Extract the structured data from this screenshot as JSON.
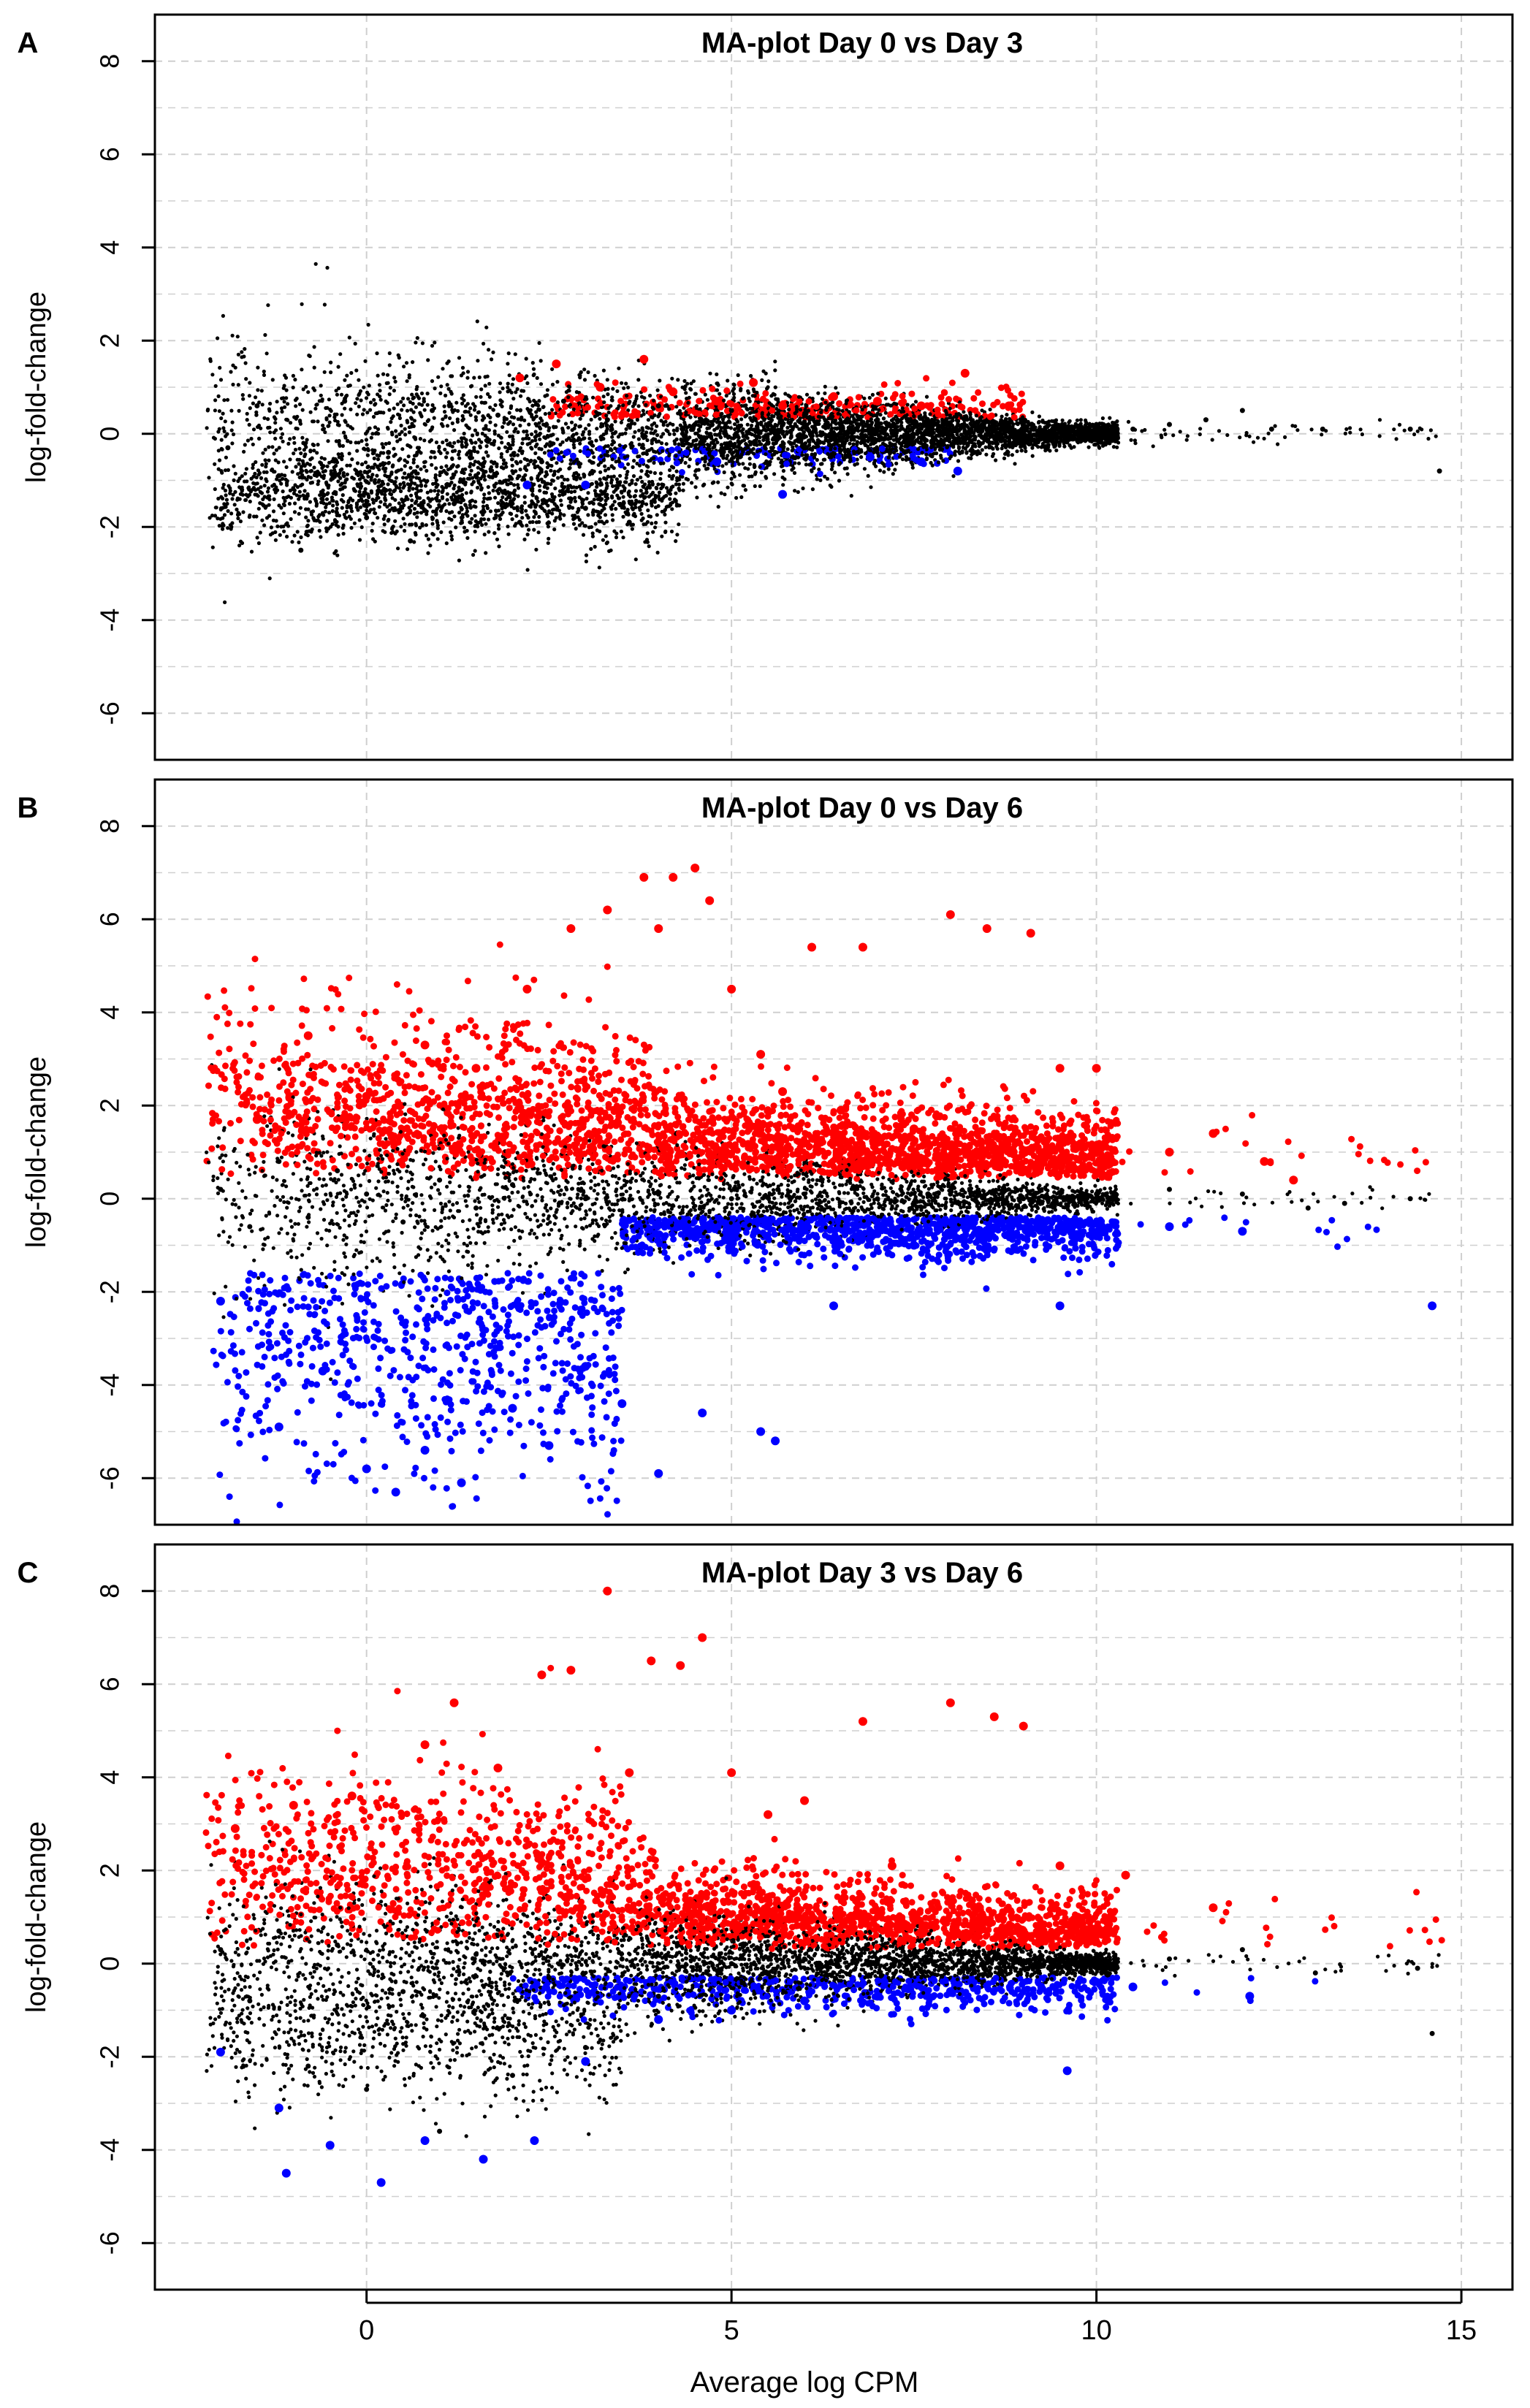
{
  "figure": {
    "xlabel": "Average log CPM",
    "xticks": [
      "0",
      "5",
      "10",
      "15"
    ],
    "colors": {
      "not_significant": "#000000",
      "up": "#ff0000",
      "down": "#0000ff",
      "grid": "#cfcfcf",
      "frame": "#000000"
    }
  },
  "chart_data": [
    {
      "panel_label": "A",
      "type": "scatter",
      "title": "MA-plot Day 0 vs Day 3",
      "xlabel": "",
      "ylabel": "log-fold-change",
      "xlim": [
        -2.9,
        15.7
      ],
      "ylim": [
        -7.0,
        9.0
      ],
      "yticks": [
        "8",
        "6",
        "4",
        "2",
        "0",
        "-2",
        "-4",
        "-6"
      ],
      "grid": true,
      "series": [
        {
          "color": "#000000",
          "values": [
            [
              -1.9,
              -0.3
            ],
            [
              -1.5,
              0.6
            ],
            [
              -1.2,
              -0.9
            ],
            [
              -0.9,
              -2.5
            ],
            [
              -0.6,
              -1.3
            ],
            [
              -0.3,
              0.7
            ],
            [
              0.0,
              -1.8
            ],
            [
              0.3,
              -0.4
            ],
            [
              0.6,
              -2.3
            ],
            [
              0.9,
              0.5
            ],
            [
              1.2,
              -1.5
            ],
            [
              1.5,
              -0.9
            ],
            [
              1.8,
              0.4
            ],
            [
              2.1,
              -1.9
            ],
            [
              2.4,
              -0.6
            ],
            [
              2.7,
              0.7
            ],
            [
              3.0,
              -1.6
            ],
            [
              3.3,
              0.3
            ],
            [
              3.6,
              -1.9
            ],
            [
              4.0,
              0.6
            ],
            [
              4.5,
              0.2
            ],
            [
              5.0,
              0.5
            ],
            [
              5.5,
              -0.2
            ],
            [
              6.0,
              0.4
            ],
            [
              6.5,
              0.1
            ],
            [
              7.0,
              0.3
            ],
            [
              7.5,
              -0.2
            ],
            [
              8.0,
              0.2
            ],
            [
              8.5,
              0.1
            ],
            [
              9.0,
              0.3
            ],
            [
              9.5,
              0.1
            ],
            [
              10.0,
              0.2
            ],
            [
              10.5,
              0.1
            ],
            [
              11.0,
              0.2
            ],
            [
              11.5,
              0.3
            ],
            [
              12.0,
              0.5
            ],
            [
              12.4,
              0.1
            ],
            [
              13.1,
              0.1
            ],
            [
              14.3,
              0.1
            ],
            [
              14.7,
              -0.8
            ]
          ]
        },
        {
          "color": "#ff0000",
          "values": [
            [
              2.1,
              1.2
            ],
            [
              2.6,
              1.5
            ],
            [
              3.2,
              1.0
            ],
            [
              3.8,
              1.6
            ],
            [
              4.2,
              0.9
            ],
            [
              4.8,
              0.7
            ],
            [
              5.3,
              1.1
            ],
            [
              5.7,
              0.6
            ],
            [
              6.4,
              0.8
            ],
            [
              7.0,
              0.7
            ],
            [
              7.6,
              0.6
            ],
            [
              8.2,
              1.3
            ],
            [
              8.8,
              0.6
            ]
          ]
        },
        {
          "color": "#0000ff",
          "values": [
            [
              2.2,
              -1.1
            ],
            [
              3.0,
              -1.1
            ],
            [
              4.8,
              -0.6
            ],
            [
              5.7,
              -1.3
            ],
            [
              6.9,
              -0.5
            ],
            [
              7.6,
              -0.6
            ],
            [
              8.1,
              -0.8
            ]
          ]
        }
      ]
    },
    {
      "panel_label": "B",
      "type": "scatter",
      "title": "MA-plot Day 0 vs Day 6",
      "xlabel": "",
      "ylabel": "log-fold-change",
      "xlim": [
        -2.9,
        15.7
      ],
      "ylim": [
        -7.0,
        9.0
      ],
      "yticks": [
        "8",
        "6",
        "4",
        "2",
        "0",
        "-2",
        "-4",
        "-6"
      ],
      "grid": true,
      "series": [
        {
          "color": "#000000",
          "values": [
            [
              -2.0,
              0.2
            ],
            [
              -1.6,
              -0.6
            ],
            [
              -1.2,
              0.8
            ],
            [
              -0.8,
              -0.4
            ],
            [
              -0.4,
              0.6
            ],
            [
              0.0,
              0.1
            ],
            [
              0.5,
              -0.5
            ],
            [
              1.0,
              0.4
            ],
            [
              1.5,
              -0.2
            ],
            [
              2.0,
              0.3
            ],
            [
              3.0,
              0.0
            ],
            [
              4.0,
              0.1
            ],
            [
              5.0,
              0.0
            ],
            [
              6.0,
              0.1
            ],
            [
              7.0,
              0.0
            ],
            [
              8.0,
              0.1
            ],
            [
              9.0,
              0.0
            ],
            [
              10.0,
              0.1
            ],
            [
              11.0,
              0.2
            ],
            [
              12.0,
              0.1
            ],
            [
              12.9,
              -0.2
            ],
            [
              13.4,
              -0.1
            ],
            [
              14.3,
              0.0
            ]
          ]
        },
        {
          "color": "#ff0000",
          "values": [
            [
              -1.5,
              1.7
            ],
            [
              -0.8,
              3.5
            ],
            [
              0.0,
              2.2
            ],
            [
              0.8,
              3.3
            ],
            [
              1.5,
              2.8
            ],
            [
              2.2,
              4.5
            ],
            [
              2.8,
              5.8
            ],
            [
              3.3,
              6.2
            ],
            [
              3.8,
              6.9
            ],
            [
              4.0,
              5.8
            ],
            [
              4.2,
              6.9
            ],
            [
              4.5,
              7.1
            ],
            [
              4.7,
              6.4
            ],
            [
              5.0,
              4.5
            ],
            [
              5.4,
              3.1
            ],
            [
              5.7,
              2.3
            ],
            [
              6.1,
              5.4
            ],
            [
              6.5,
              1.9
            ],
            [
              6.8,
              5.4
            ],
            [
              7.5,
              1.5
            ],
            [
              8.0,
              6.1
            ],
            [
              8.5,
              5.8
            ],
            [
              9.1,
              5.7
            ],
            [
              9.5,
              2.8
            ],
            [
              10.0,
              2.8
            ],
            [
              11.0,
              1.0
            ],
            [
              11.6,
              1.4
            ],
            [
              12.3,
              0.8
            ],
            [
              12.7,
              0.4
            ]
          ]
        },
        {
          "color": "#0000ff",
          "values": [
            [
              -2.0,
              -2.2
            ],
            [
              -1.2,
              -4.9
            ],
            [
              -0.6,
              -3.7
            ],
            [
              0.0,
              -5.8
            ],
            [
              0.4,
              -6.3
            ],
            [
              0.8,
              -5.4
            ],
            [
              1.3,
              -6.1
            ],
            [
              2.0,
              -4.5
            ],
            [
              2.5,
              -5.3
            ],
            [
              3.0,
              -3.6
            ],
            [
              3.5,
              -4.4
            ],
            [
              4.0,
              -5.9
            ],
            [
              4.6,
              -4.6
            ],
            [
              5.4,
              -5.0
            ],
            [
              5.6,
              -5.2
            ],
            [
              6.4,
              -2.3
            ],
            [
              7.5,
              -1.0
            ],
            [
              8.5,
              -1.1
            ],
            [
              9.5,
              -2.3
            ],
            [
              10.0,
              -0.8
            ],
            [
              11.0,
              -0.6
            ],
            [
              12.0,
              -0.7
            ],
            [
              14.6,
              -2.3
            ]
          ]
        }
      ]
    },
    {
      "panel_label": "C",
      "type": "scatter",
      "title": "MA-plot Day 3 vs Day 6",
      "xlabel": "Average log CPM",
      "ylabel": "log-fold-change",
      "xlim": [
        -2.9,
        15.7
      ],
      "ylim": [
        -7.0,
        9.0
      ],
      "yticks": [
        "8",
        "6",
        "4",
        "2",
        "0",
        "-2",
        "-4",
        "-6"
      ],
      "xticks": [
        0,
        5,
        10,
        15
      ],
      "grid": true,
      "series": [
        {
          "color": "#000000",
          "values": [
            [
              -2.0,
              0.3
            ],
            [
              -1.6,
              -0.8
            ],
            [
              -1.2,
              0.7
            ],
            [
              -0.8,
              -2.2
            ],
            [
              -0.4,
              0.4
            ],
            [
              0.0,
              -2.7
            ],
            [
              0.5,
              -0.6
            ],
            [
              1.0,
              -3.6
            ],
            [
              1.5,
              0.2
            ],
            [
              2.0,
              -2.4
            ],
            [
              2.5,
              -0.3
            ],
            [
              3.0,
              -1.8
            ],
            [
              3.5,
              0.1
            ],
            [
              4.0,
              -0.7
            ],
            [
              5.0,
              0.0
            ],
            [
              6.0,
              0.1
            ],
            [
              7.0,
              0.0
            ],
            [
              8.0,
              0.1
            ],
            [
              9.0,
              0.0
            ],
            [
              10.0,
              0.2
            ],
            [
              11.0,
              0.1
            ],
            [
              12.0,
              0.3
            ],
            [
              13.0,
              -0.2
            ],
            [
              14.4,
              -0.1
            ],
            [
              14.6,
              -1.5
            ]
          ]
        },
        {
          "color": "#ff0000",
          "values": [
            [
              -1.8,
              2.9
            ],
            [
              -1.0,
              3.4
            ],
            [
              -0.2,
              3.6
            ],
            [
              0.8,
              4.7
            ],
            [
              1.2,
              5.6
            ],
            [
              1.8,
              4.2
            ],
            [
              2.4,
              6.2
            ],
            [
              2.8,
              6.3
            ],
            [
              3.3,
              8.0
            ],
            [
              3.6,
              4.1
            ],
            [
              3.9,
              6.5
            ],
            [
              4.3,
              6.4
            ],
            [
              4.6,
              7.0
            ],
            [
              5.0,
              4.1
            ],
            [
              5.5,
              3.2
            ],
            [
              6.0,
              3.5
            ],
            [
              6.8,
              5.2
            ],
            [
              7.2,
              2.1
            ],
            [
              8.0,
              5.6
            ],
            [
              8.6,
              5.3
            ],
            [
              9.0,
              5.1
            ],
            [
              9.5,
              2.1
            ],
            [
              10.4,
              1.9
            ],
            [
              11.6,
              1.2
            ]
          ]
        },
        {
          "color": "#0000ff",
          "values": [
            [
              -2.0,
              -1.9
            ],
            [
              -1.2,
              -3.1
            ],
            [
              -1.1,
              -4.5
            ],
            [
              -0.5,
              -3.9
            ],
            [
              0.2,
              -4.7
            ],
            [
              0.8,
              -3.8
            ],
            [
              1.6,
              -4.2
            ],
            [
              2.3,
              -3.8
            ],
            [
              3.0,
              -2.1
            ],
            [
              4.0,
              -1.2
            ],
            [
              5.0,
              -1.0
            ],
            [
              6.0,
              -0.8
            ],
            [
              7.0,
              -0.7
            ],
            [
              8.0,
              -0.6
            ],
            [
              9.6,
              -2.3
            ],
            [
              10.5,
              -0.5
            ],
            [
              12.1,
              -0.7
            ]
          ]
        }
      ]
    }
  ]
}
